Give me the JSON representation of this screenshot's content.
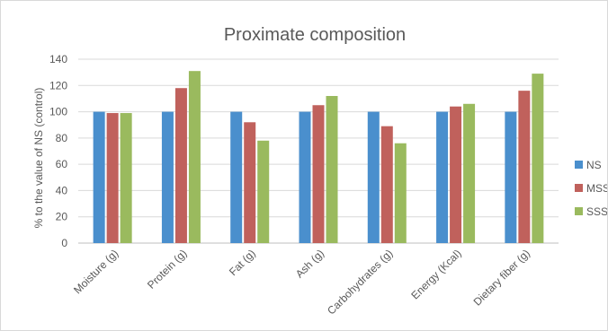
{
  "chart_data": {
    "type": "bar",
    "title": "Proximate composition",
    "ylabel": "% to the value of NS (control)",
    "xlabel": "",
    "ylim": [
      0,
      140
    ],
    "yticks": [
      0,
      20,
      40,
      60,
      80,
      100,
      120,
      140
    ],
    "grid": true,
    "legend_position": "right",
    "categories": [
      "Moisture (g)",
      "Protein (g)",
      "Fat (g)",
      "Ash (g)",
      "Carbohydrates (g)",
      "Energy (Kcal)",
      "Dietary fiber (g)"
    ],
    "series": [
      {
        "name": "NS",
        "color": "#4a8fcd",
        "values": [
          100,
          100,
          100,
          100,
          100,
          100,
          100
        ]
      },
      {
        "name": "MSS",
        "color": "#c0615c",
        "values": [
          99,
          118,
          92,
          105,
          89,
          104,
          116
        ]
      },
      {
        "name": "SSS",
        "color": "#9aba5e",
        "values": [
          99,
          131,
          78,
          112,
          76,
          106,
          129
        ]
      }
    ]
  }
}
